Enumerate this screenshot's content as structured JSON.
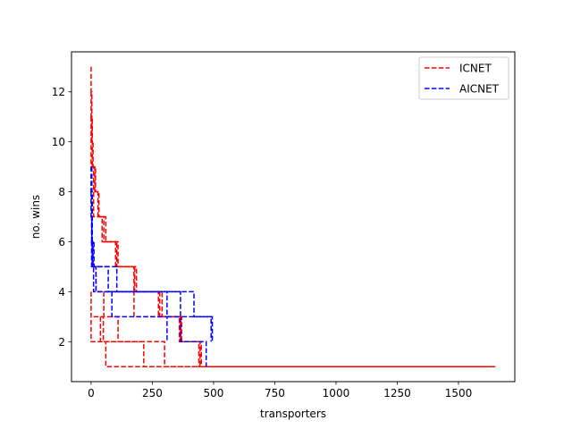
{
  "chart_data": {
    "type": "line",
    "title": "",
    "xlabel": "transporters",
    "ylabel": "no. wins",
    "xlim": [
      -80,
      1730
    ],
    "ylim": [
      0.4,
      13.6
    ],
    "xticks": [
      0,
      250,
      500,
      750,
      1000,
      1250,
      1500
    ],
    "yticks": [
      2,
      4,
      6,
      8,
      10,
      12
    ],
    "xtick_labels": [
      "0",
      "250",
      "500",
      "750",
      "1000",
      "1250",
      "1500"
    ],
    "ytick_labels": [
      "2",
      "4",
      "6",
      "8",
      "10",
      "12"
    ],
    "grid": false,
    "legend_position": "top-right",
    "series": [
      {
        "name": "ICNET",
        "color": "#ff0000",
        "linestyle": "dashed",
        "runs": [
          [
            [
              0,
              13
            ],
            [
              0,
              12
            ],
            [
              3,
              12
            ],
            [
              3,
              10
            ],
            [
              8,
              10
            ],
            [
              8,
              9
            ],
            [
              18,
              9
            ],
            [
              18,
              8
            ],
            [
              32,
              8
            ],
            [
              32,
              7
            ],
            [
              60,
              7
            ],
            [
              60,
              6
            ],
            [
              110,
              6
            ],
            [
              110,
              5
            ],
            [
              185,
              5
            ],
            [
              185,
              4
            ],
            [
              290,
              4
            ],
            [
              290,
              3
            ],
            [
              370,
              3
            ],
            [
              370,
              2
            ],
            [
              450,
              2
            ],
            [
              450,
              1
            ],
            [
              1650,
              1
            ]
          ],
          [
            [
              0,
              12
            ],
            [
              0,
              11
            ],
            [
              5,
              11
            ],
            [
              5,
              9
            ],
            [
              15,
              9
            ],
            [
              15,
              8
            ],
            [
              28,
              8
            ],
            [
              28,
              7
            ],
            [
              52,
              7
            ],
            [
              52,
              6
            ],
            [
              105,
              6
            ],
            [
              105,
              5
            ],
            [
              178,
              5
            ],
            [
              178,
              4
            ],
            [
              280,
              4
            ],
            [
              280,
              3
            ],
            [
              365,
              3
            ],
            [
              365,
              2
            ],
            [
              440,
              2
            ],
            [
              440,
              1
            ],
            [
              1650,
              1
            ]
          ],
          [
            [
              0,
              11
            ],
            [
              0,
              9
            ],
            [
              10,
              9
            ],
            [
              10,
              7
            ],
            [
              45,
              7
            ],
            [
              45,
              6
            ],
            [
              100,
              6
            ],
            [
              100,
              5
            ],
            [
              175,
              5
            ],
            [
              175,
              4
            ],
            [
              275,
              4
            ],
            [
              275,
              3
            ],
            [
              360,
              3
            ],
            [
              360,
              2
            ],
            [
              445,
              2
            ],
            [
              445,
              1
            ],
            [
              1650,
              1
            ]
          ],
          [
            [
              0,
              4
            ],
            [
              0,
              2
            ],
            [
              300,
              2
            ],
            [
              300,
              1
            ],
            [
              1650,
              1
            ]
          ],
          [
            [
              10,
              3
            ],
            [
              50,
              3
            ],
            [
              50,
              2
            ],
            [
              215,
              2
            ],
            [
              215,
              1
            ],
            [
              1650,
              1
            ]
          ],
          [
            [
              38,
              3
            ],
            [
              38,
              2
            ],
            [
              60,
              2
            ],
            [
              60,
              1
            ],
            [
              1650,
              1
            ]
          ],
          [
            [
              52,
              4
            ],
            [
              52,
              3
            ],
            [
              110,
              3
            ],
            [
              110,
              2
            ],
            [
              215,
              2
            ]
          ],
          [
            [
              0,
              6
            ],
            [
              5,
              6
            ],
            [
              5,
              5
            ],
            [
              20,
              5
            ],
            [
              20,
              4
            ],
            [
              175,
              4
            ],
            [
              175,
              3
            ],
            [
              300,
              3
            ]
          ]
        ]
      },
      {
        "name": "AICNET",
        "color": "#0000ff",
        "linestyle": "dashed",
        "runs": [
          [
            [
              0,
              9
            ],
            [
              0,
              8
            ],
            [
              2,
              8
            ],
            [
              2,
              6
            ],
            [
              5,
              6
            ],
            [
              5,
              5
            ],
            [
              70,
              5
            ],
            [
              70,
              4
            ],
            [
              310,
              4
            ],
            [
              310,
              3
            ],
            [
              365,
              3
            ],
            [
              365,
              2
            ],
            [
              470,
              2
            ],
            [
              470,
              1
            ]
          ],
          [
            [
              0,
              8
            ],
            [
              0,
              7
            ],
            [
              3,
              7
            ],
            [
              3,
              6
            ],
            [
              8,
              6
            ],
            [
              8,
              5
            ],
            [
              20,
              5
            ],
            [
              20,
              4
            ],
            [
              420,
              4
            ],
            [
              420,
              3
            ],
            [
              490,
              3
            ],
            [
              490,
              2
            ]
          ],
          [
            [
              3,
              9
            ],
            [
              3,
              8
            ],
            [
              5,
              8
            ],
            [
              5,
              6
            ],
            [
              12,
              6
            ],
            [
              12,
              5
            ],
            [
              105,
              5
            ],
            [
              105,
              4
            ],
            [
              365,
              4
            ],
            [
              365,
              3
            ],
            [
              495,
              3
            ],
            [
              495,
              2
            ]
          ],
          [
            [
              0,
              6
            ],
            [
              2,
              6
            ],
            [
              2,
              5
            ],
            [
              10,
              5
            ],
            [
              10,
              4
            ],
            [
              85,
              4
            ],
            [
              85,
              3
            ],
            [
              310,
              3
            ],
            [
              310,
              2
            ]
          ]
        ]
      }
    ]
  }
}
